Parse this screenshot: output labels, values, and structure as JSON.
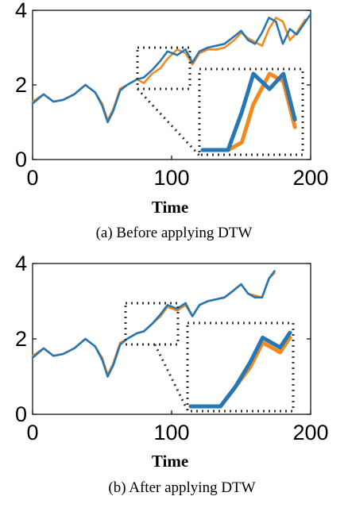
{
  "chart_data": [
    {
      "type": "line",
      "caption": "(a) Before applying DTW",
      "xlabel": "Time",
      "ylabel": "",
      "xlim": [
        0,
        200
      ],
      "ylim": [
        0,
        4
      ],
      "xticks": [
        "0",
        "100",
        "200"
      ],
      "yticks": [
        "0",
        "2",
        "4"
      ],
      "grid": false,
      "series": [
        {
          "color": "#f28a1e",
          "x": [
            0,
            8,
            15,
            22,
            30,
            38,
            45,
            50,
            54,
            58,
            63,
            68,
            75,
            80,
            86,
            92,
            97,
            104,
            110,
            115,
            120,
            126,
            132,
            138,
            145,
            150,
            155,
            160,
            165,
            170,
            175,
            180,
            185,
            190,
            196
          ],
          "y": [
            1.55,
            1.75,
            1.55,
            1.6,
            1.75,
            2.0,
            1.8,
            1.5,
            1.05,
            1.35,
            1.9,
            2.0,
            2.15,
            2.05,
            2.3,
            2.45,
            2.7,
            2.95,
            2.85,
            2.55,
            2.85,
            2.95,
            2.95,
            3.0,
            3.2,
            3.4,
            3.25,
            3.15,
            3.05,
            3.5,
            3.8,
            3.7,
            3.2,
            3.4,
            3.75
          ]
        },
        {
          "color": "#2677b4",
          "x": [
            0,
            8,
            15,
            22,
            30,
            38,
            45,
            50,
            54,
            58,
            63,
            68,
            75,
            80,
            86,
            92,
            97,
            104,
            110,
            115,
            120,
            126,
            132,
            138,
            145,
            150,
            155,
            160,
            165,
            170,
            175,
            180,
            185,
            190,
            200
          ],
          "y": [
            1.5,
            1.75,
            1.55,
            1.6,
            1.75,
            2.0,
            1.8,
            1.45,
            1.0,
            1.3,
            1.85,
            2.0,
            2.15,
            2.2,
            2.4,
            2.65,
            2.9,
            2.8,
            2.95,
            2.6,
            2.9,
            3.0,
            3.05,
            3.1,
            3.3,
            3.45,
            3.2,
            3.1,
            3.4,
            3.8,
            3.7,
            3.1,
            3.5,
            3.35,
            3.9
          ]
        }
      ]
    },
    {
      "type": "line",
      "caption": "(b) After applying DTW",
      "xlabel": "Time",
      "ylabel": "",
      "xlim": [
        0,
        200
      ],
      "ylim": [
        0,
        4
      ],
      "xticks": [
        "0",
        "100",
        "200"
      ],
      "yticks": [
        "0",
        "2",
        "4"
      ],
      "grid": false,
      "series": [
        {
          "color": "#f28a1e",
          "x": [
            0,
            8,
            15,
            22,
            30,
            38,
            45,
            50,
            54,
            58,
            63,
            68,
            75,
            80,
            86,
            92,
            97,
            104,
            110,
            115,
            120,
            126,
            132,
            138,
            145,
            150,
            155,
            160,
            165,
            170,
            174
          ],
          "y": [
            1.55,
            1.75,
            1.55,
            1.6,
            1.75,
            2.0,
            1.8,
            1.5,
            1.05,
            1.35,
            1.9,
            2.0,
            2.15,
            2.2,
            2.4,
            2.6,
            2.85,
            2.75,
            2.9,
            2.6,
            2.9,
            3.0,
            3.05,
            3.1,
            3.3,
            3.45,
            3.2,
            3.15,
            3.1,
            3.6,
            3.75
          ]
        },
        {
          "color": "#2677b4",
          "x": [
            0,
            8,
            15,
            22,
            30,
            38,
            45,
            50,
            54,
            58,
            63,
            68,
            75,
            80,
            86,
            92,
            97,
            104,
            110,
            115,
            120,
            126,
            132,
            138,
            145,
            150,
            155,
            160,
            165,
            170,
            174
          ],
          "y": [
            1.5,
            1.75,
            1.55,
            1.6,
            1.75,
            2.0,
            1.8,
            1.45,
            1.0,
            1.3,
            1.85,
            2.0,
            2.15,
            2.2,
            2.4,
            2.65,
            2.9,
            2.8,
            2.95,
            2.6,
            2.9,
            3.0,
            3.05,
            3.1,
            3.3,
            3.45,
            3.2,
            3.1,
            3.1,
            3.6,
            3.8
          ]
        }
      ]
    }
  ]
}
